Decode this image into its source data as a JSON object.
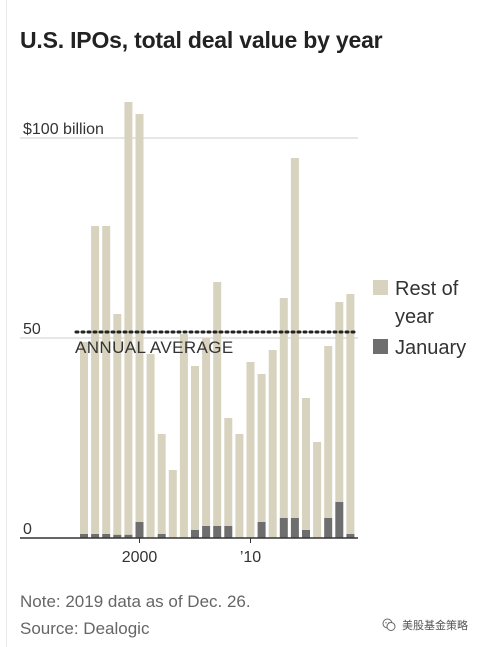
{
  "title": "U.S. IPOs, total deal value by year",
  "notes": {
    "note": "Note: 2019 data as of Dec. 26.",
    "source": "Source: Dealogic"
  },
  "watermark": {
    "text": "美股基金策略",
    "icon": "wechat-icon"
  },
  "colors": {
    "rest_of_year": "#d8d3bf",
    "january": "#6e6e6e",
    "axis": "#333333",
    "gridline": "#cccccc",
    "average_line": "#222222",
    "text": "#333333"
  },
  "chart_data": {
    "type": "bar",
    "stacked": true,
    "title": "U.S. IPOs, total deal value by year",
    "categories": [
      "1995",
      "1996",
      "1997",
      "1998",
      "1999",
      "2000",
      "2001",
      "2002",
      "2003",
      "2004",
      "2005",
      "2006",
      "2007",
      "2008",
      "2009",
      "2010",
      "2011",
      "2012",
      "2013",
      "2014",
      "2015",
      "2016",
      "2017",
      "2018",
      "2019"
    ],
    "series": [
      {
        "name": "January",
        "values": [
          1,
          1,
          1,
          0.8,
          0.8,
          4,
          0,
          1,
          0,
          0,
          2,
          3,
          3,
          3,
          0,
          0,
          4,
          0,
          5,
          5,
          2,
          0,
          5,
          9,
          1
        ]
      },
      {
        "name": "Rest of year",
        "values": [
          48,
          77,
          77,
          55.2,
          108.2,
          102,
          46,
          25,
          17,
          51,
          41,
          47,
          61,
          27,
          26,
          44,
          37,
          47,
          55,
          90,
          33,
          24,
          43,
          50,
          60
        ]
      }
    ],
    "ylim": [
      0,
      110
    ],
    "yticks": [
      {
        "value": 0,
        "label": "0"
      },
      {
        "value": 50,
        "label": "50"
      },
      {
        "value": 100,
        "label": "$100 billion"
      }
    ],
    "xticks": [
      {
        "category": "2000",
        "label": "2000"
      },
      {
        "category": "2010",
        "label": "’10"
      }
    ],
    "reference_line": {
      "label": "ANNUAL AVERAGE",
      "value": 51.5,
      "style": "dotted"
    },
    "legend": {
      "placement": "right",
      "items": [
        {
          "series": "Rest of year",
          "label": "Rest of year"
        },
        {
          "series": "January",
          "label": "January"
        }
      ]
    },
    "grid": true
  }
}
